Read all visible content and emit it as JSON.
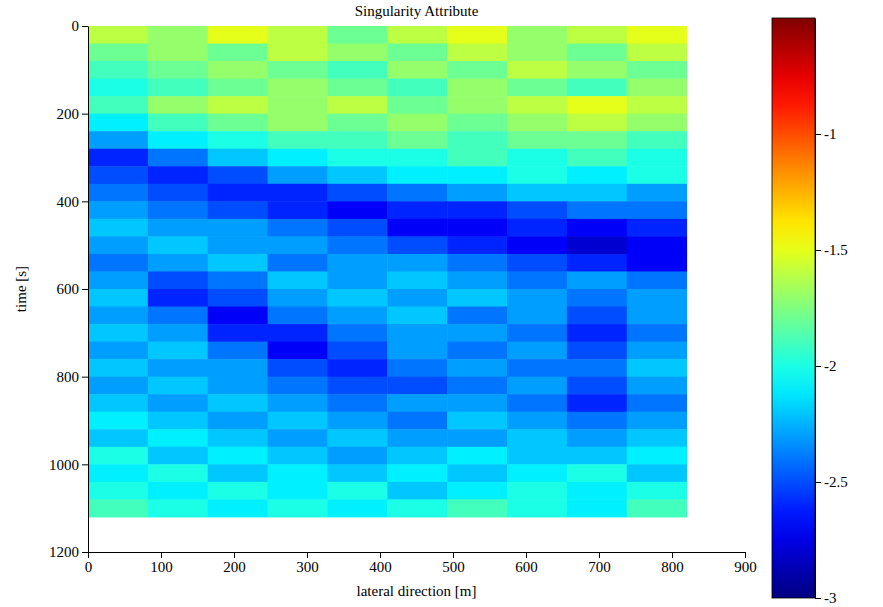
{
  "chart_data": {
    "type": "heatmap",
    "title": "Singularity Attribute",
    "x_label": "lateral direction [m]",
    "y_label": "time [s]",
    "xlim": [
      0,
      900
    ],
    "xticks": [
      0,
      100,
      200,
      300,
      400,
      500,
      600,
      700,
      800,
      900
    ],
    "ylim": [
      1200,
      0
    ],
    "yticks": [
      0,
      200,
      400,
      600,
      800,
      1000,
      1200
    ],
    "color": "jet",
    "x_edges": [
      0,
      82,
      164,
      246,
      328,
      410,
      492,
      574,
      656,
      738,
      820
    ],
    "y_edges": [
      0,
      40,
      80,
      120,
      160,
      200,
      240,
      280,
      320,
      360,
      400,
      440,
      480,
      520,
      560,
      600,
      640,
      680,
      720,
      760,
      800,
      840,
      880,
      920,
      960,
      1000,
      1040,
      1080,
      1120
    ],
    "values": [
      [
        -1.6,
        -1.7,
        -1.5,
        -1.6,
        -1.8,
        -1.6,
        -1.5,
        -1.7,
        -1.6,
        -1.5
      ],
      [
        -1.8,
        -1.7,
        -1.8,
        -1.6,
        -1.7,
        -1.8,
        -1.6,
        -1.7,
        -1.8,
        -1.6
      ],
      [
        -1.9,
        -1.8,
        -1.7,
        -1.8,
        -1.9,
        -1.7,
        -1.8,
        -1.6,
        -1.7,
        -1.8
      ],
      [
        -2.0,
        -1.9,
        -1.8,
        -1.7,
        -1.8,
        -1.9,
        -1.7,
        -1.8,
        -1.9,
        -1.7
      ],
      [
        -1.9,
        -1.7,
        -1.6,
        -1.7,
        -1.6,
        -1.8,
        -1.7,
        -1.6,
        -1.5,
        -1.6
      ],
      [
        -2.1,
        -1.9,
        -1.8,
        -1.7,
        -1.8,
        -1.7,
        -1.8,
        -1.7,
        -1.6,
        -1.7
      ],
      [
        -2.3,
        -2.1,
        -2.0,
        -1.9,
        -1.9,
        -1.8,
        -1.9,
        -1.8,
        -1.8,
        -1.9
      ],
      [
        -2.6,
        -2.4,
        -2.2,
        -2.1,
        -2.0,
        -2.0,
        -1.9,
        -2.0,
        -1.9,
        -2.0
      ],
      [
        -2.5,
        -2.6,
        -2.5,
        -2.3,
        -2.2,
        -2.1,
        -2.1,
        -2.0,
        -2.1,
        -2.0
      ],
      [
        -2.4,
        -2.5,
        -2.6,
        -2.6,
        -2.5,
        -2.4,
        -2.3,
        -2.2,
        -2.2,
        -2.3
      ],
      [
        -2.3,
        -2.4,
        -2.5,
        -2.6,
        -2.7,
        -2.6,
        -2.6,
        -2.5,
        -2.4,
        -2.4
      ],
      [
        -2.2,
        -2.3,
        -2.3,
        -2.4,
        -2.5,
        -2.7,
        -2.7,
        -2.6,
        -2.7,
        -2.6
      ],
      [
        -2.3,
        -2.2,
        -2.3,
        -2.3,
        -2.4,
        -2.5,
        -2.6,
        -2.7,
        -2.8,
        -2.7
      ],
      [
        -2.4,
        -2.3,
        -2.2,
        -2.4,
        -2.3,
        -2.3,
        -2.4,
        -2.5,
        -2.6,
        -2.7
      ],
      [
        -2.3,
        -2.5,
        -2.4,
        -2.2,
        -2.3,
        -2.2,
        -2.3,
        -2.4,
        -2.3,
        -2.4
      ],
      [
        -2.2,
        -2.6,
        -2.5,
        -2.3,
        -2.2,
        -2.3,
        -2.2,
        -2.3,
        -2.4,
        -2.3
      ],
      [
        -2.3,
        -2.4,
        -2.7,
        -2.4,
        -2.3,
        -2.2,
        -2.4,
        -2.3,
        -2.5,
        -2.3
      ],
      [
        -2.2,
        -2.3,
        -2.6,
        -2.6,
        -2.4,
        -2.3,
        -2.3,
        -2.4,
        -2.6,
        -2.4
      ],
      [
        -2.3,
        -2.2,
        -2.4,
        -2.7,
        -2.5,
        -2.3,
        -2.4,
        -2.3,
        -2.5,
        -2.3
      ],
      [
        -2.2,
        -2.3,
        -2.3,
        -2.5,
        -2.6,
        -2.4,
        -2.3,
        -2.4,
        -2.4,
        -2.2
      ],
      [
        -2.3,
        -2.2,
        -2.3,
        -2.4,
        -2.5,
        -2.5,
        -2.4,
        -2.3,
        -2.5,
        -2.3
      ],
      [
        -2.2,
        -2.3,
        -2.2,
        -2.3,
        -2.4,
        -2.3,
        -2.3,
        -2.4,
        -2.6,
        -2.4
      ],
      [
        -2.1,
        -2.2,
        -2.3,
        -2.2,
        -2.3,
        -2.4,
        -2.2,
        -2.3,
        -2.4,
        -2.3
      ],
      [
        -2.2,
        -2.1,
        -2.2,
        -2.3,
        -2.2,
        -2.3,
        -2.3,
        -2.2,
        -2.3,
        -2.2
      ],
      [
        -2.0,
        -2.2,
        -2.1,
        -2.2,
        -2.3,
        -2.2,
        -2.1,
        -2.2,
        -2.2,
        -2.1
      ],
      [
        -2.1,
        -2.0,
        -2.2,
        -2.1,
        -2.2,
        -2.1,
        -2.2,
        -2.1,
        -2.0,
        -2.2
      ],
      [
        -2.0,
        -2.1,
        -2.0,
        -2.1,
        -2.0,
        -2.2,
        -2.1,
        -2.0,
        -2.1,
        -2.0
      ],
      [
        -1.9,
        -2.0,
        -2.1,
        -2.0,
        -2.1,
        -2.0,
        -1.9,
        -2.0,
        -2.1,
        -1.9
      ]
    ],
    "colorbar": {
      "range": [
        -3,
        -0.5
      ],
      "ticks": [
        -1,
        -1.5,
        -2,
        -2.5,
        -3
      ]
    }
  }
}
